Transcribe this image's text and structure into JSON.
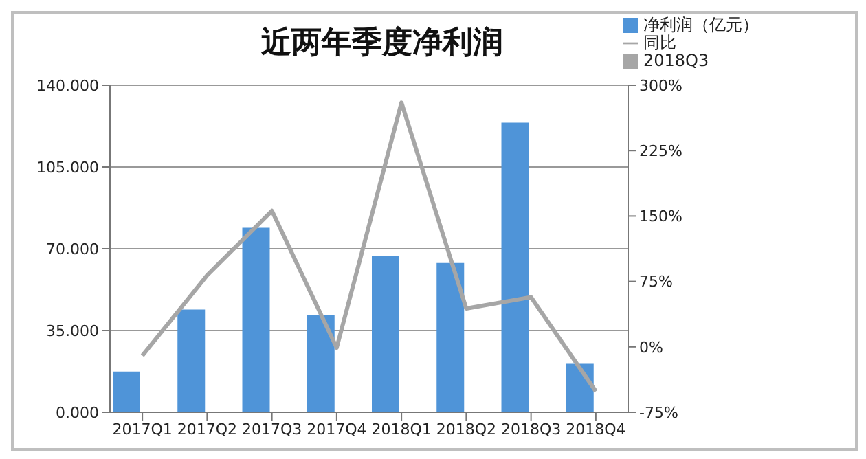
{
  "chart_data": {
    "type": "bar",
    "title": "近两年季度净利润",
    "categories": [
      "2017Q1",
      "2017Q2",
      "2017Q3",
      "2017Q4",
      "2018Q1",
      "2018Q2",
      "2018Q3",
      "2018Q4"
    ],
    "series": [
      {
        "name": "净利润（亿元）",
        "color": "#4f94d8",
        "values": [
          17.4,
          44,
          79,
          41.7,
          66.8,
          63.9,
          124,
          20.7
        ]
      },
      {
        "name": "同比",
        "type": "line",
        "axis": "y2",
        "color": "#a6a6a6",
        "values": [
          -10,
          82,
          156,
          -1,
          280,
          44,
          57,
          -51
        ]
      },
      {
        "name": "2018Q3",
        "color": "#a6a6a6",
        "values": [
          null,
          null,
          null,
          null,
          null,
          null,
          null,
          null
        ]
      }
    ],
    "ylim": [
      0,
      140
    ],
    "yticks": [
      {
        "value": 0,
        "label": "0.000"
      },
      {
        "value": 35,
        "label": "35.000"
      },
      {
        "value": 70,
        "label": "70.000"
      },
      {
        "value": 105,
        "label": "105.000"
      },
      {
        "value": 140,
        "label": "140.000"
      }
    ],
    "y2lim": [
      -75,
      300
    ],
    "y2ticks": [
      {
        "value": -75,
        "label": "-75%"
      },
      {
        "value": 0,
        "label": "0%"
      },
      {
        "value": 75,
        "label": "75%"
      },
      {
        "value": 150,
        "label": "150%"
      },
      {
        "value": 225,
        "label": "225%"
      },
      {
        "value": 300,
        "label": "300%"
      }
    ],
    "grid": "y",
    "legend": "top right",
    "marker": "none"
  }
}
